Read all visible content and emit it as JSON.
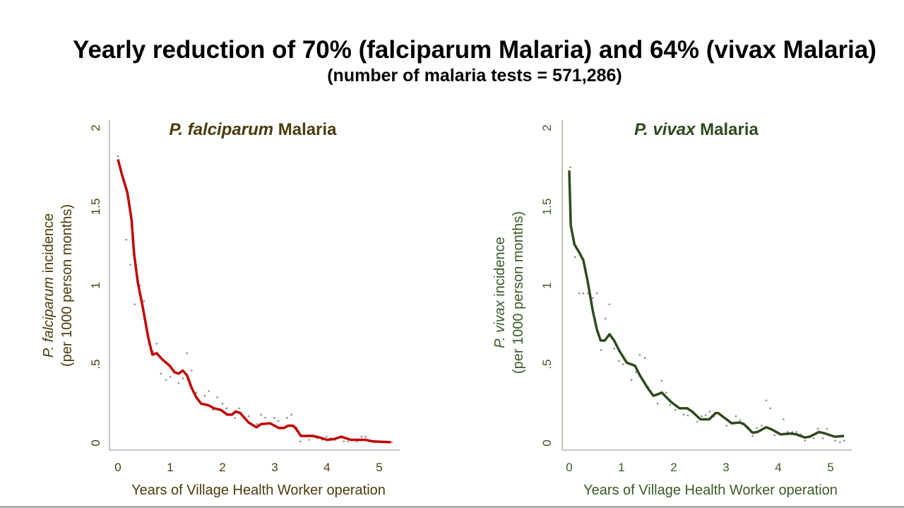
{
  "header": {
    "title": "Yearly reduction of 70% (falciparum Malaria) and 64% (vivax Malaria)",
    "subtitle": "(number of malaria tests = 571,286)"
  },
  "colors": {
    "falciparum_line": "#c00000",
    "falciparum_text": "#4b3b0b",
    "vivax_line": "#2e4a1c",
    "vivax_text": "#3b5a26",
    "points": "#8a8a8a",
    "axis": "#b5b0a2"
  },
  "chart_data": [
    {
      "type": "scatter+line",
      "title_italic": "P. falciparum",
      "title_rest": " Malaria",
      "ylabel_italic": "P. falciparum",
      "ylabel_rest": " incidence",
      "ylabel_line2": "(per 1000 person months)",
      "xlabel": "Years of Village Health Worker operation",
      "xticks": [
        "0",
        "1",
        "2",
        "3",
        "4",
        "5"
      ],
      "yticks": [
        "0",
        ".5",
        "1",
        "1.5",
        "2"
      ],
      "xlim": [
        -0.15,
        5.35
      ],
      "ylim": [
        0,
        2
      ],
      "line": [
        [
          0,
          1.8
        ],
        [
          0.08,
          1.7
        ],
        [
          0.18,
          1.59
        ],
        [
          0.26,
          1.42
        ],
        [
          0.31,
          1.2
        ],
        [
          0.38,
          1.02
        ],
        [
          0.47,
          0.87
        ],
        [
          0.58,
          0.67
        ],
        [
          0.66,
          0.56
        ],
        [
          0.74,
          0.57
        ],
        [
          0.85,
          0.53
        ],
        [
          0.99,
          0.49
        ],
        [
          1.08,
          0.45
        ],
        [
          1.16,
          0.44
        ],
        [
          1.24,
          0.46
        ],
        [
          1.32,
          0.43
        ],
        [
          1.41,
          0.35
        ],
        [
          1.5,
          0.29
        ],
        [
          1.59,
          0.25
        ],
        [
          1.73,
          0.24
        ],
        [
          1.84,
          0.22
        ],
        [
          1.97,
          0.21
        ],
        [
          2.09,
          0.18
        ],
        [
          2.18,
          0.18
        ],
        [
          2.25,
          0.2
        ],
        [
          2.34,
          0.19
        ],
        [
          2.5,
          0.13
        ],
        [
          2.65,
          0.1
        ],
        [
          2.74,
          0.12
        ],
        [
          2.91,
          0.125
        ],
        [
          3.08,
          0.095
        ],
        [
          3.17,
          0.095
        ],
        [
          3.26,
          0.11
        ],
        [
          3.35,
          0.11
        ],
        [
          3.41,
          0.09
        ],
        [
          3.5,
          0.045
        ],
        [
          3.73,
          0.045
        ],
        [
          3.86,
          0.035
        ],
        [
          4.0,
          0.02
        ],
        [
          4.14,
          0.025
        ],
        [
          4.27,
          0.04
        ],
        [
          4.46,
          0.02
        ],
        [
          4.73,
          0.02
        ],
        [
          4.88,
          0.01
        ],
        [
          5.22,
          0.005
        ]
      ],
      "points": [
        [
          0,
          1.82
        ],
        [
          0.16,
          1.29
        ],
        [
          0.24,
          1.13
        ],
        [
          0.32,
          0.88
        ],
        [
          0.42,
          1.0
        ],
        [
          0.5,
          0.9
        ],
        [
          0.59,
          0.63
        ],
        [
          0.67,
          0.58
        ],
        [
          0.74,
          0.63
        ],
        [
          0.82,
          0.44
        ],
        [
          0.92,
          0.4
        ],
        [
          1.0,
          0.42
        ],
        [
          1.16,
          0.38
        ],
        [
          1.24,
          0.41
        ],
        [
          1.32,
          0.57
        ],
        [
          1.41,
          0.46
        ],
        [
          1.5,
          0.32
        ],
        [
          1.66,
          0.3
        ],
        [
          1.74,
          0.33
        ],
        [
          1.82,
          0.21
        ],
        [
          1.9,
          0.29
        ],
        [
          2.0,
          0.25
        ],
        [
          2.08,
          0.22
        ],
        [
          2.24,
          0.16
        ],
        [
          2.32,
          0.22
        ],
        [
          2.5,
          0.17
        ],
        [
          2.66,
          0.12
        ],
        [
          2.74,
          0.18
        ],
        [
          2.82,
          0.16
        ],
        [
          2.99,
          0.16
        ],
        [
          3.07,
          0.14
        ],
        [
          3.24,
          0.16
        ],
        [
          3.32,
          0.18
        ],
        [
          3.41,
          0.1
        ],
        [
          3.49,
          0.01
        ],
        [
          3.66,
          0.02
        ],
        [
          3.82,
          0.03
        ],
        [
          3.91,
          0.02
        ],
        [
          3.99,
          0.04
        ],
        [
          4.07,
          0.03
        ],
        [
          4.15,
          0.02
        ],
        [
          4.32,
          0.01
        ],
        [
          4.4,
          0.01
        ],
        [
          4.57,
          0.01
        ],
        [
          4.66,
          0.04
        ],
        [
          4.74,
          0.04
        ],
        [
          4.9,
          0.005
        ],
        [
          5.16,
          0.005
        ],
        [
          5.24,
          0.005
        ]
      ]
    },
    {
      "type": "scatter+line",
      "title_italic": "P. vivax",
      "title_rest": " Malaria",
      "ylabel_italic": "P. vivax",
      "ylabel_rest": " incidence",
      "ylabel_line2": "(per 1000 person months)",
      "xlabel": "Years of Village Health Worker operation",
      "xticks": [
        "0",
        "1",
        "2",
        "3",
        "4",
        "5"
      ],
      "yticks": [
        "0",
        ".5",
        "1",
        "1.5",
        "2"
      ],
      "xlim": [
        -0.15,
        5.35
      ],
      "ylim": [
        0,
        2
      ],
      "line": [
        [
          0,
          1.73
        ],
        [
          0.03,
          1.38
        ],
        [
          0.1,
          1.26
        ],
        [
          0.19,
          1.21
        ],
        [
          0.27,
          1.16
        ],
        [
          0.35,
          1.03
        ],
        [
          0.45,
          0.84
        ],
        [
          0.53,
          0.72
        ],
        [
          0.6,
          0.65
        ],
        [
          0.68,
          0.65
        ],
        [
          0.77,
          0.69
        ],
        [
          0.86,
          0.65
        ],
        [
          0.95,
          0.59
        ],
        [
          1.1,
          0.51
        ],
        [
          1.26,
          0.49
        ],
        [
          1.35,
          0.43
        ],
        [
          1.5,
          0.35
        ],
        [
          1.61,
          0.3
        ],
        [
          1.7,
          0.31
        ],
        [
          1.77,
          0.32
        ],
        [
          1.95,
          0.26
        ],
        [
          2.11,
          0.22
        ],
        [
          2.26,
          0.22
        ],
        [
          2.35,
          0.2
        ],
        [
          2.51,
          0.15
        ],
        [
          2.68,
          0.15
        ],
        [
          2.8,
          0.19
        ],
        [
          2.85,
          0.19
        ],
        [
          3.11,
          0.125
        ],
        [
          3.26,
          0.13
        ],
        [
          3.34,
          0.12
        ],
        [
          3.51,
          0.065
        ],
        [
          3.6,
          0.07
        ],
        [
          3.77,
          0.1
        ],
        [
          3.88,
          0.085
        ],
        [
          4.04,
          0.055
        ],
        [
          4.24,
          0.06
        ],
        [
          4.34,
          0.055
        ],
        [
          4.51,
          0.035
        ],
        [
          4.6,
          0.04
        ],
        [
          4.78,
          0.07
        ],
        [
          4.9,
          0.06
        ],
        [
          5.08,
          0.04
        ],
        [
          5.26,
          0.045
        ]
      ],
      "points": [
        [
          0.02,
          1.75
        ],
        [
          0.11,
          1.18
        ],
        [
          0.19,
          0.95
        ],
        [
          0.27,
          0.95
        ],
        [
          0.36,
          0.95
        ],
        [
          0.45,
          0.92
        ],
        [
          0.53,
          0.95
        ],
        [
          0.61,
          0.59
        ],
        [
          0.69,
          0.79
        ],
        [
          0.77,
          0.88
        ],
        [
          0.86,
          0.6
        ],
        [
          0.95,
          0.52
        ],
        [
          1.03,
          0.5
        ],
        [
          1.19,
          0.4
        ],
        [
          1.28,
          0.45
        ],
        [
          1.35,
          0.56
        ],
        [
          1.45,
          0.54
        ],
        [
          1.51,
          0.355
        ],
        [
          1.69,
          0.25
        ],
        [
          1.77,
          0.395
        ],
        [
          1.85,
          0.32
        ],
        [
          1.93,
          0.24
        ],
        [
          2.03,
          0.21
        ],
        [
          2.19,
          0.18
        ],
        [
          2.27,
          0.175
        ],
        [
          2.45,
          0.135
        ],
        [
          2.53,
          0.17
        ],
        [
          2.61,
          0.175
        ],
        [
          2.69,
          0.2
        ],
        [
          2.77,
          0.17
        ],
        [
          3.01,
          0.11
        ],
        [
          3.19,
          0.17
        ],
        [
          3.27,
          0.145
        ],
        [
          3.43,
          0.1
        ],
        [
          3.51,
          0.045
        ],
        [
          3.59,
          0.095
        ],
        [
          3.68,
          0.11
        ],
        [
          3.77,
          0.27
        ],
        [
          3.85,
          0.22
        ],
        [
          3.93,
          0.05
        ],
        [
          4.1,
          0.15
        ],
        [
          4.18,
          0.07
        ],
        [
          4.27,
          0.07
        ],
        [
          4.35,
          0.07
        ],
        [
          4.43,
          0.055
        ],
        [
          4.51,
          0.015
        ],
        [
          4.68,
          0.03
        ],
        [
          4.76,
          0.09
        ],
        [
          4.85,
          0.03
        ],
        [
          4.93,
          0.09
        ],
        [
          5.09,
          0.015
        ],
        [
          5.18,
          0.005
        ],
        [
          5.26,
          0.015
        ]
      ]
    }
  ]
}
